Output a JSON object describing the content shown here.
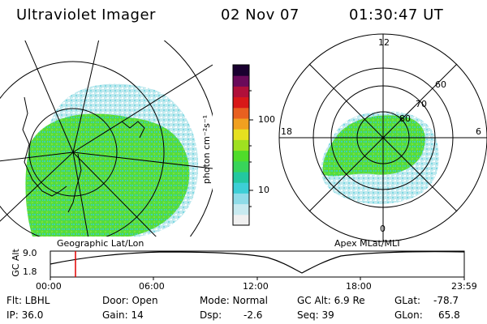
{
  "header": {
    "instrument": "Ultraviolet Imager",
    "date": "02 Nov 07",
    "time": "01:30:47 UT"
  },
  "geo_panel": {
    "label": "Geographic Lat/Lon"
  },
  "apex_panel": {
    "label": "Apex MLat/MLT",
    "mlt_labels": {
      "top": "12",
      "right": "6",
      "bottom": "0",
      "left": "18"
    },
    "lat_labels": [
      "60",
      "70",
      "80"
    ]
  },
  "colorbar": {
    "unit_label": "photon cm⁻²s⁻¹",
    "ticks": [
      "100",
      "10"
    ],
    "scale": "log",
    "colors": [
      "#f0f0f0",
      "#c8eaf0",
      "#8fdce8",
      "#3dcfd6",
      "#23c8a0",
      "#38d45a",
      "#4fdc2a",
      "#9fe020",
      "#e6e020",
      "#f0a020",
      "#e86020",
      "#d81818",
      "#b0103a",
      "#6a0a5a",
      "#1a0030"
    ]
  },
  "timeline": {
    "ylabel": "GC Alt",
    "yticks": [
      "9.0",
      "1.8"
    ],
    "xticks": [
      "00:00",
      "06:00",
      "12:00",
      "18:00",
      "23:59"
    ],
    "cursor_time": "01:30:47"
  },
  "info": {
    "flt": "Flt: LBHL",
    "ip": "IP: 36.0",
    "door": "Door: Open",
    "gain": "Gain: 14",
    "mode": "Mode: Normal",
    "dsp_label": "Dsp:",
    "dsp_value": "-2.6",
    "gcalt": "GC Alt: 6.9 Re",
    "seq": "Seq: 39",
    "glat_label": "GLat:",
    "glat_value": "-78.7",
    "glon_label": "GLon:",
    "glon_value": "65.8"
  }
}
